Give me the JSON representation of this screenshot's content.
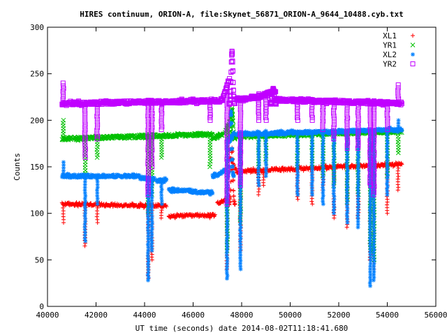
{
  "chart_data": {
    "type": "scatter",
    "title": "HIRES continuum, ORION-A, file:Skynet_56871_ORION-A_9644_10488.cyb.txt",
    "xlabel": "UT time (seconds) date 2014-08-02T11:18:41.680",
    "ylabel": "Counts",
    "xlim": [
      40000,
      56000
    ],
    "ylim": [
      0,
      300
    ],
    "xticks": [
      "40000",
      "42000",
      "44000",
      "46000",
      "48000",
      "50000",
      "52000",
      "54000",
      "56000"
    ],
    "yticks": [
      "0",
      "50",
      "100",
      "150",
      "200",
      "250",
      "300"
    ],
    "legend_position": "top-right",
    "series": [
      {
        "name": "XL1",
        "color": "#ff0000",
        "marker": "plus",
        "segments": [
          [
            40600,
            44900,
            110,
            108
          ],
          [
            45000,
            46900,
            97,
            98
          ],
          [
            47000,
            47400,
            110,
            115
          ],
          [
            47500,
            47800,
            160,
            145
          ],
          [
            47800,
            52000,
            145,
            150
          ],
          [
            52000,
            54600,
            150,
            153
          ]
        ],
        "peaks": [
          [
            47600,
            170
          ]
        ],
        "spikes": [
          [
            40650,
            90
          ],
          [
            41550,
            65
          ],
          [
            42050,
            90
          ],
          [
            44150,
            30
          ],
          [
            44300,
            50
          ],
          [
            44700,
            95
          ],
          [
            46700,
            95
          ],
          [
            47400,
            40
          ],
          [
            47950,
            60
          ],
          [
            48700,
            120
          ],
          [
            48900,
            130
          ],
          [
            50300,
            115
          ],
          [
            50900,
            110
          ],
          [
            51350,
            125
          ],
          [
            51800,
            95
          ],
          [
            52350,
            85
          ],
          [
            52800,
            95
          ],
          [
            53300,
            50
          ],
          [
            53450,
            40
          ],
          [
            54000,
            100
          ],
          [
            54450,
            125
          ]
        ]
      },
      {
        "name": "YR1",
        "color": "#00c000",
        "marker": "x",
        "segments": [
          [
            40600,
            46800,
            180,
            185
          ],
          [
            46800,
            47200,
            180,
            185
          ],
          [
            47300,
            47600,
            185,
            205
          ],
          [
            47700,
            54600,
            183,
            188
          ]
        ],
        "peaks": [
          [
            47600,
            212
          ]
        ],
        "spikes": [
          [
            40650,
            200
          ],
          [
            41550,
            140
          ],
          [
            42050,
            160
          ],
          [
            44150,
            100
          ],
          [
            44300,
            120
          ],
          [
            44700,
            160
          ],
          [
            46700,
            150
          ],
          [
            47400,
            60
          ],
          [
            47950,
            90
          ],
          [
            48700,
            150
          ],
          [
            49000,
            155
          ],
          [
            50300,
            150
          ],
          [
            50900,
            150
          ],
          [
            51350,
            140
          ],
          [
            51800,
            130
          ],
          [
            52350,
            112
          ],
          [
            52800,
            120
          ],
          [
            53300,
            60
          ],
          [
            53450,
            50
          ],
          [
            54000,
            140
          ],
          [
            54450,
            165
          ]
        ]
      },
      {
        "name": "XL2",
        "color": "#0080ff",
        "marker": "star",
        "segments": [
          [
            40600,
            43800,
            140,
            140
          ],
          [
            43800,
            44400,
            138,
            137
          ],
          [
            44500,
            44900,
            135,
            135
          ],
          [
            45000,
            46000,
            125,
            124
          ],
          [
            46000,
            46800,
            123,
            123
          ],
          [
            46800,
            47300,
            140,
            145
          ],
          [
            47400,
            47700,
            175,
            185
          ],
          [
            47800,
            54600,
            185,
            190
          ]
        ],
        "peaks": [
          [
            47550,
            210
          ]
        ],
        "spikes": [
          [
            40650,
            155
          ],
          [
            41550,
            70
          ],
          [
            42050,
            110
          ],
          [
            44150,
            28
          ],
          [
            44300,
            60
          ],
          [
            44700,
            110
          ],
          [
            46700,
            120
          ],
          [
            47400,
            30
          ],
          [
            47950,
            40
          ],
          [
            48700,
            130
          ],
          [
            49000,
            140
          ],
          [
            50300,
            120
          ],
          [
            50900,
            120
          ],
          [
            51350,
            110
          ],
          [
            51800,
            100
          ],
          [
            52350,
            90
          ],
          [
            52800,
            85
          ],
          [
            53300,
            22
          ],
          [
            53450,
            28
          ],
          [
            54000,
            120
          ],
          [
            54450,
            200
          ]
        ]
      },
      {
        "name": "YR2",
        "color": "#c000ff",
        "marker": "square",
        "segments": [
          [
            40600,
            47200,
            218,
            221
          ],
          [
            47200,
            47500,
            222,
            245
          ],
          [
            47800,
            48700,
            222,
            225
          ],
          [
            48700,
            49400,
            225,
            232
          ],
          [
            49400,
            54600,
            222,
            218
          ]
        ],
        "peaks": [
          [
            47600,
            274
          ],
          [
            49300,
            234
          ]
        ],
        "spikes": [
          [
            40650,
            240
          ],
          [
            41550,
            160
          ],
          [
            42050,
            180
          ],
          [
            44150,
            120
          ],
          [
            44300,
            150
          ],
          [
            44700,
            190
          ],
          [
            46700,
            200
          ],
          [
            47400,
            110
          ],
          [
            47950,
            130
          ],
          [
            48700,
            200
          ],
          [
            49000,
            200
          ],
          [
            50300,
            200
          ],
          [
            50900,
            200
          ],
          [
            51350,
            190
          ],
          [
            51800,
            180
          ],
          [
            52350,
            170
          ],
          [
            52800,
            170
          ],
          [
            53300,
            130
          ],
          [
            53450,
            120
          ],
          [
            54000,
            190
          ],
          [
            54450,
            238
          ]
        ]
      }
    ]
  }
}
